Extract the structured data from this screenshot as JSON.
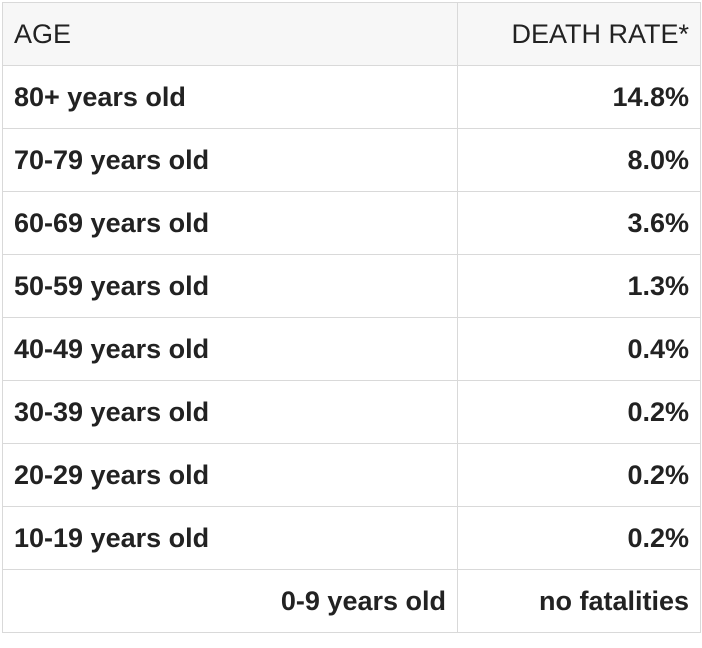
{
  "table": {
    "headers": {
      "age": "AGE",
      "death_rate": "DEATH RATE*"
    },
    "rows": [
      {
        "age": "80+ years old",
        "rate": "14.8%"
      },
      {
        "age": "70-79 years old",
        "rate": "8.0%"
      },
      {
        "age": "60-69 years old",
        "rate": "3.6%"
      },
      {
        "age": "50-59 years old",
        "rate": "1.3%"
      },
      {
        "age": "40-49 years old",
        "rate": "0.4%"
      },
      {
        "age": "30-39 years old",
        "rate": "0.2%"
      },
      {
        "age": "20-29 years old",
        "rate": "0.2%"
      },
      {
        "age": "10-19 years old",
        "rate": "0.2%"
      },
      {
        "age": "0-9 years old",
        "rate": "no fatalities"
      }
    ]
  }
}
